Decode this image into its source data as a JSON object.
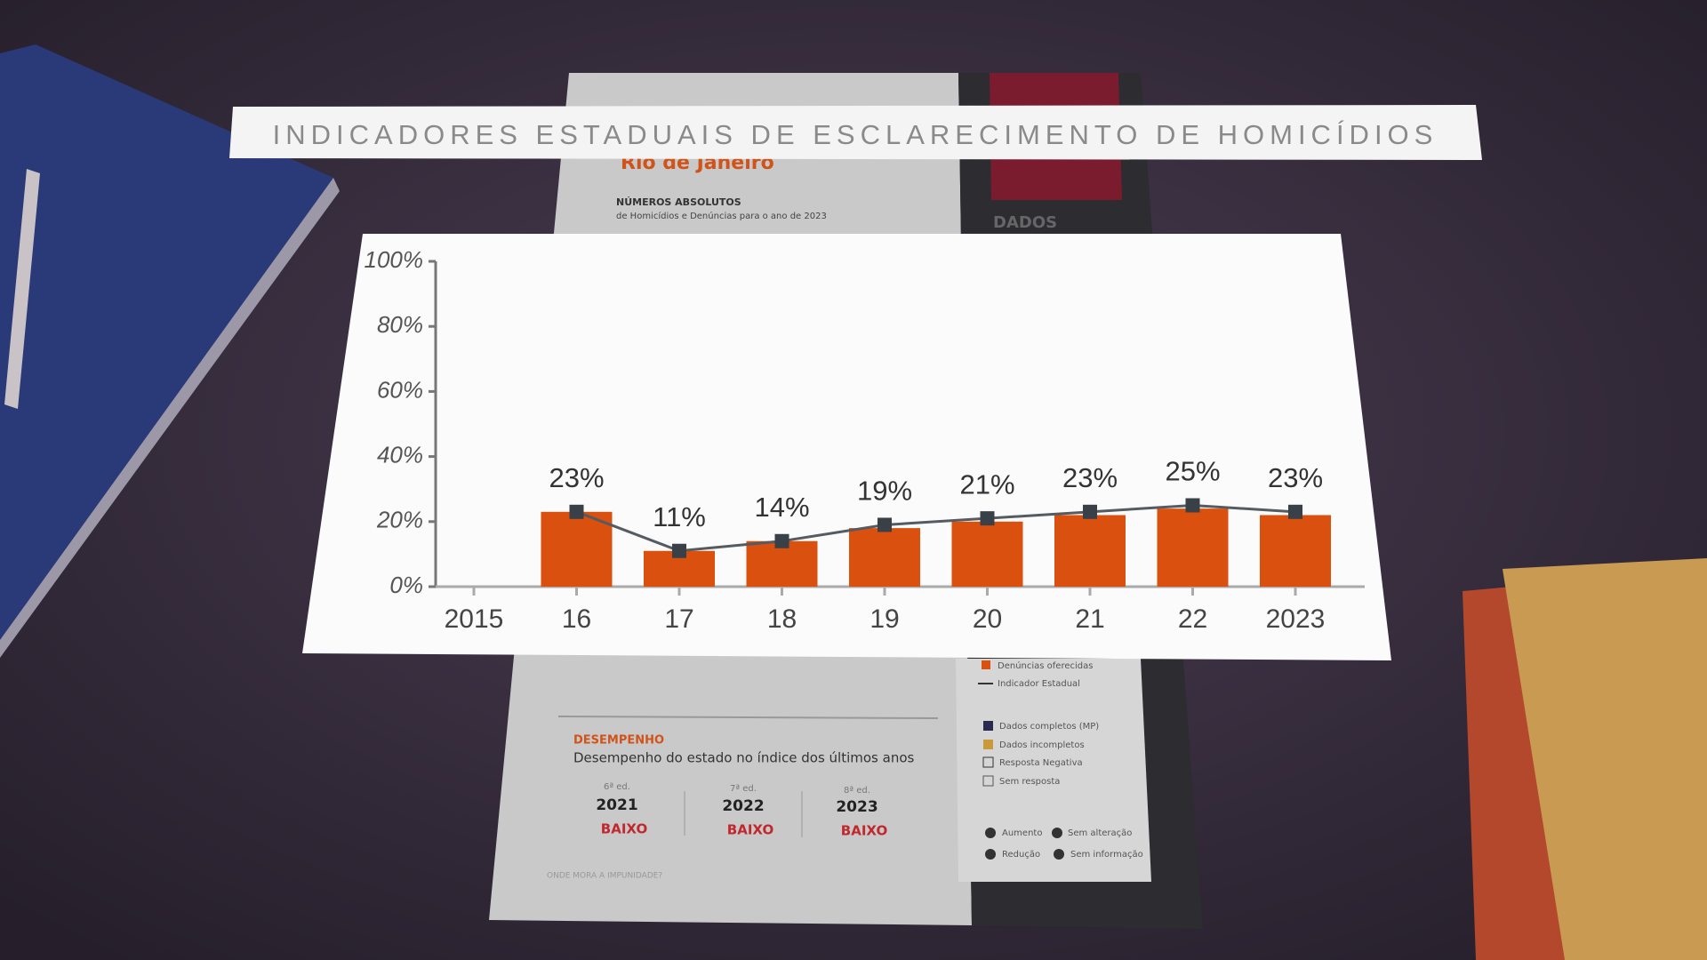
{
  "title": "INDICADORES ESTADUAIS DE ESCLARECIMENTO DE HOMICÍDIOS",
  "chart_data": {
    "type": "bar",
    "categories": [
      "2015",
      "16",
      "17",
      "18",
      "19",
      "20",
      "21",
      "22",
      "2023"
    ],
    "series": [
      {
        "type": "bar",
        "color": "#d9500f",
        "values": [
          0,
          23,
          11,
          14,
          18,
          20,
          22,
          24,
          22
        ]
      },
      {
        "type": "line",
        "color": "#555b61",
        "marker_color": "#3a4048",
        "values": [
          null,
          23,
          11,
          14,
          19,
          21,
          23,
          25,
          23
        ],
        "value_labels": [
          null,
          "23%",
          "11%",
          "14%",
          "19%",
          "21%",
          "23%",
          "25%",
          "23%"
        ]
      }
    ],
    "ylim": [
      0,
      100
    ],
    "yticks": [
      {
        "value": 0,
        "label": "0%"
      },
      {
        "value": 20,
        "label": "20%"
      },
      {
        "value": 40,
        "label": "40%"
      },
      {
        "value": 60,
        "label": "60%"
      },
      {
        "value": 80,
        "label": "80%"
      },
      {
        "value": 100,
        "label": "100%"
      }
    ],
    "grid": false
  },
  "background_document": {
    "state": "Rio de Janeiro",
    "section": "NÚMEROS ABSOLUTOS",
    "section_subtitle": "de Homicídios e Denúncias para o ano de 2023",
    "panel_label": "DADOS",
    "legend_chart": [
      "Denúncias oferecidas",
      "Indicador Estadual"
    ],
    "legend_data": [
      "Dados completos (MP)",
      "Dados incompletos",
      "Resposta Negativa",
      "Sem resposta"
    ],
    "legend_compare": [
      "Aumento",
      "Sem alteração",
      "Redução",
      "Sem informação"
    ],
    "performance_title": "DESEMPENHO",
    "performance_subtitle": "Desempenho do estado no índice dos últimos anos",
    "editions": [
      {
        "edition": "6ª ed.",
        "year": "2021",
        "rating": "BAIXO"
      },
      {
        "edition": "7ª ed.",
        "year": "2022",
        "rating": "BAIXO"
      },
      {
        "edition": "8ª ed.",
        "year": "2023",
        "rating": "BAIXO"
      }
    ],
    "footer": "ONDE MORA A IMPUNIDADE?"
  }
}
